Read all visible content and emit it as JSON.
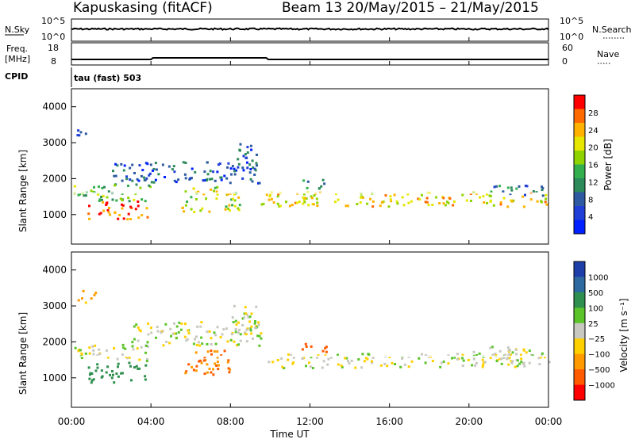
{
  "header": {
    "radar": "Kapuskasing (fitACF)",
    "beam_dates": "Beam 13 20/May/2015 – 21/May/2015"
  },
  "strip_panels": {
    "noise": {
      "left_label": "N.Sky",
      "right_label": "N.Search",
      "left_ticks": [
        "10^5",
        "10^0"
      ],
      "right_ticks": [
        "10^5",
        "10^0"
      ]
    },
    "freq": {
      "left_label_line1": "Freq.",
      "left_label_line2": "[MHz]",
      "right_label": "Nave",
      "left_ticks": [
        "18",
        "8"
      ],
      "right_ticks": [
        "60",
        "0"
      ]
    },
    "cpid_label": "CPID",
    "cpid_value": "tau (fast) 503"
  },
  "x_ticks": [
    "00:00",
    "04:00",
    "08:00",
    "12:00",
    "16:00",
    "20:00",
    "00:00"
  ],
  "x_label": "Time UT",
  "y_label": "Slant Range [km]",
  "y_ticks": [
    "4000",
    "3000",
    "2000",
    "1000"
  ],
  "power_colorbar": {
    "label": "Power [dB]",
    "ticks": [
      "28",
      "24",
      "20",
      "16",
      "12",
      "8",
      "4"
    ],
    "colors": [
      "#ff0000",
      "#ff6a00",
      "#ffb300",
      "#e6e600",
      "#8fd400",
      "#33b04d",
      "#2d8a5a",
      "#2d5aa0",
      "#1f3fd6",
      "#0020ff"
    ]
  },
  "velocity_colorbar": {
    "label": "Velocity [m s⁻¹]",
    "ticks": [
      "1000",
      "500",
      "100",
      "25",
      "−25",
      "−100",
      "−500",
      "−1000"
    ],
    "colors": [
      "#1f3fa8",
      "#2d6aa0",
      "#2e8f4e",
      "#5cc42b",
      "#c8c8c0",
      "#ffd000",
      "#ff9a00",
      "#ff5a00",
      "#ff0000"
    ]
  },
  "chart_data": [
    {
      "type": "line",
      "title": "N.Sky",
      "x_range_hours": [
        0,
        24
      ],
      "series": [
        {
          "name": "N.Sky",
          "level_fraction": 0.55
        }
      ]
    },
    {
      "type": "line",
      "title": "Freq. [MHz]",
      "x_range_hours": [
        0,
        24
      ],
      "ylim": [
        8,
        18
      ],
      "series": [
        {
          "name": "Freq.",
          "values_hours": [
            [
              0,
              10.5
            ],
            [
              4,
              10.5
            ],
            [
              4.1,
              11.2
            ],
            [
              9.8,
              11.2
            ],
            [
              9.9,
              10.5
            ],
            [
              24,
              10.5
            ]
          ]
        }
      ]
    },
    {
      "type": "heatmap",
      "title": "Power [dB]",
      "xlim": [
        0,
        24
      ],
      "ylim": [
        180,
        4500
      ],
      "xlabel": "Time UT",
      "ylabel": "Slant Range [km]",
      "regions": [
        {
          "t": [
            0.1,
            4.0
          ],
          "r": [
            1400,
            1900
          ],
          "power": 14
        },
        {
          "t": [
            0.8,
            3.8
          ],
          "r": [
            900,
            1400
          ],
          "power": 26
        },
        {
          "t": [
            0.2,
            1.0
          ],
          "r": [
            3200,
            3450
          ],
          "power": 8
        },
        {
          "t": [
            2.0,
            9.5
          ],
          "r": [
            1900,
            2500
          ],
          "power": 6
        },
        {
          "t": [
            5.5,
            8.5
          ],
          "r": [
            1100,
            1800
          ],
          "power": 18
        },
        {
          "t": [
            8.2,
            9.3
          ],
          "r": [
            2200,
            3000
          ],
          "power": 7
        },
        {
          "t": [
            9.5,
            24.0
          ],
          "r": [
            1250,
            1650
          ],
          "power": 20
        },
        {
          "t": [
            11.5,
            13.0
          ],
          "r": [
            1750,
            2000
          ],
          "power": 10
        },
        {
          "t": [
            21.0,
            24.0
          ],
          "r": [
            1550,
            1850
          ],
          "power": 8
        }
      ],
      "white_line_km": 1600
    },
    {
      "type": "heatmap",
      "title": "Velocity [m s⁻¹]",
      "xlim": [
        0,
        24
      ],
      "ylim": [
        180,
        4500
      ],
      "xlabel": "Time UT",
      "ylabel": "Slant Range [km]",
      "regions": [
        {
          "t": [
            0.1,
            4.0
          ],
          "r": [
            1500,
            1950
          ],
          "velocity": 0
        },
        {
          "t": [
            0.8,
            3.8
          ],
          "r": [
            900,
            1450
          ],
          "velocity": 200
        },
        {
          "t": [
            0.3,
            1.2
          ],
          "r": [
            3100,
            3450
          ],
          "velocity": -150
        },
        {
          "t": [
            3.0,
            9.5
          ],
          "r": [
            1900,
            2600
          ],
          "velocity": 0
        },
        {
          "t": [
            5.5,
            8.0
          ],
          "r": [
            1100,
            1800
          ],
          "velocity": -300
        },
        {
          "t": [
            8.0,
            9.3
          ],
          "r": [
            2300,
            3100
          ],
          "velocity": 0
        },
        {
          "t": [
            9.8,
            24.0
          ],
          "r": [
            1300,
            1700
          ],
          "velocity": 0
        },
        {
          "t": [
            11.5,
            13.0
          ],
          "r": [
            1750,
            2000
          ],
          "velocity": -600
        },
        {
          "t": [
            20.0,
            24.0
          ],
          "r": [
            1550,
            1900
          ],
          "velocity": 0
        }
      ],
      "white_line_km": 1600
    }
  ]
}
